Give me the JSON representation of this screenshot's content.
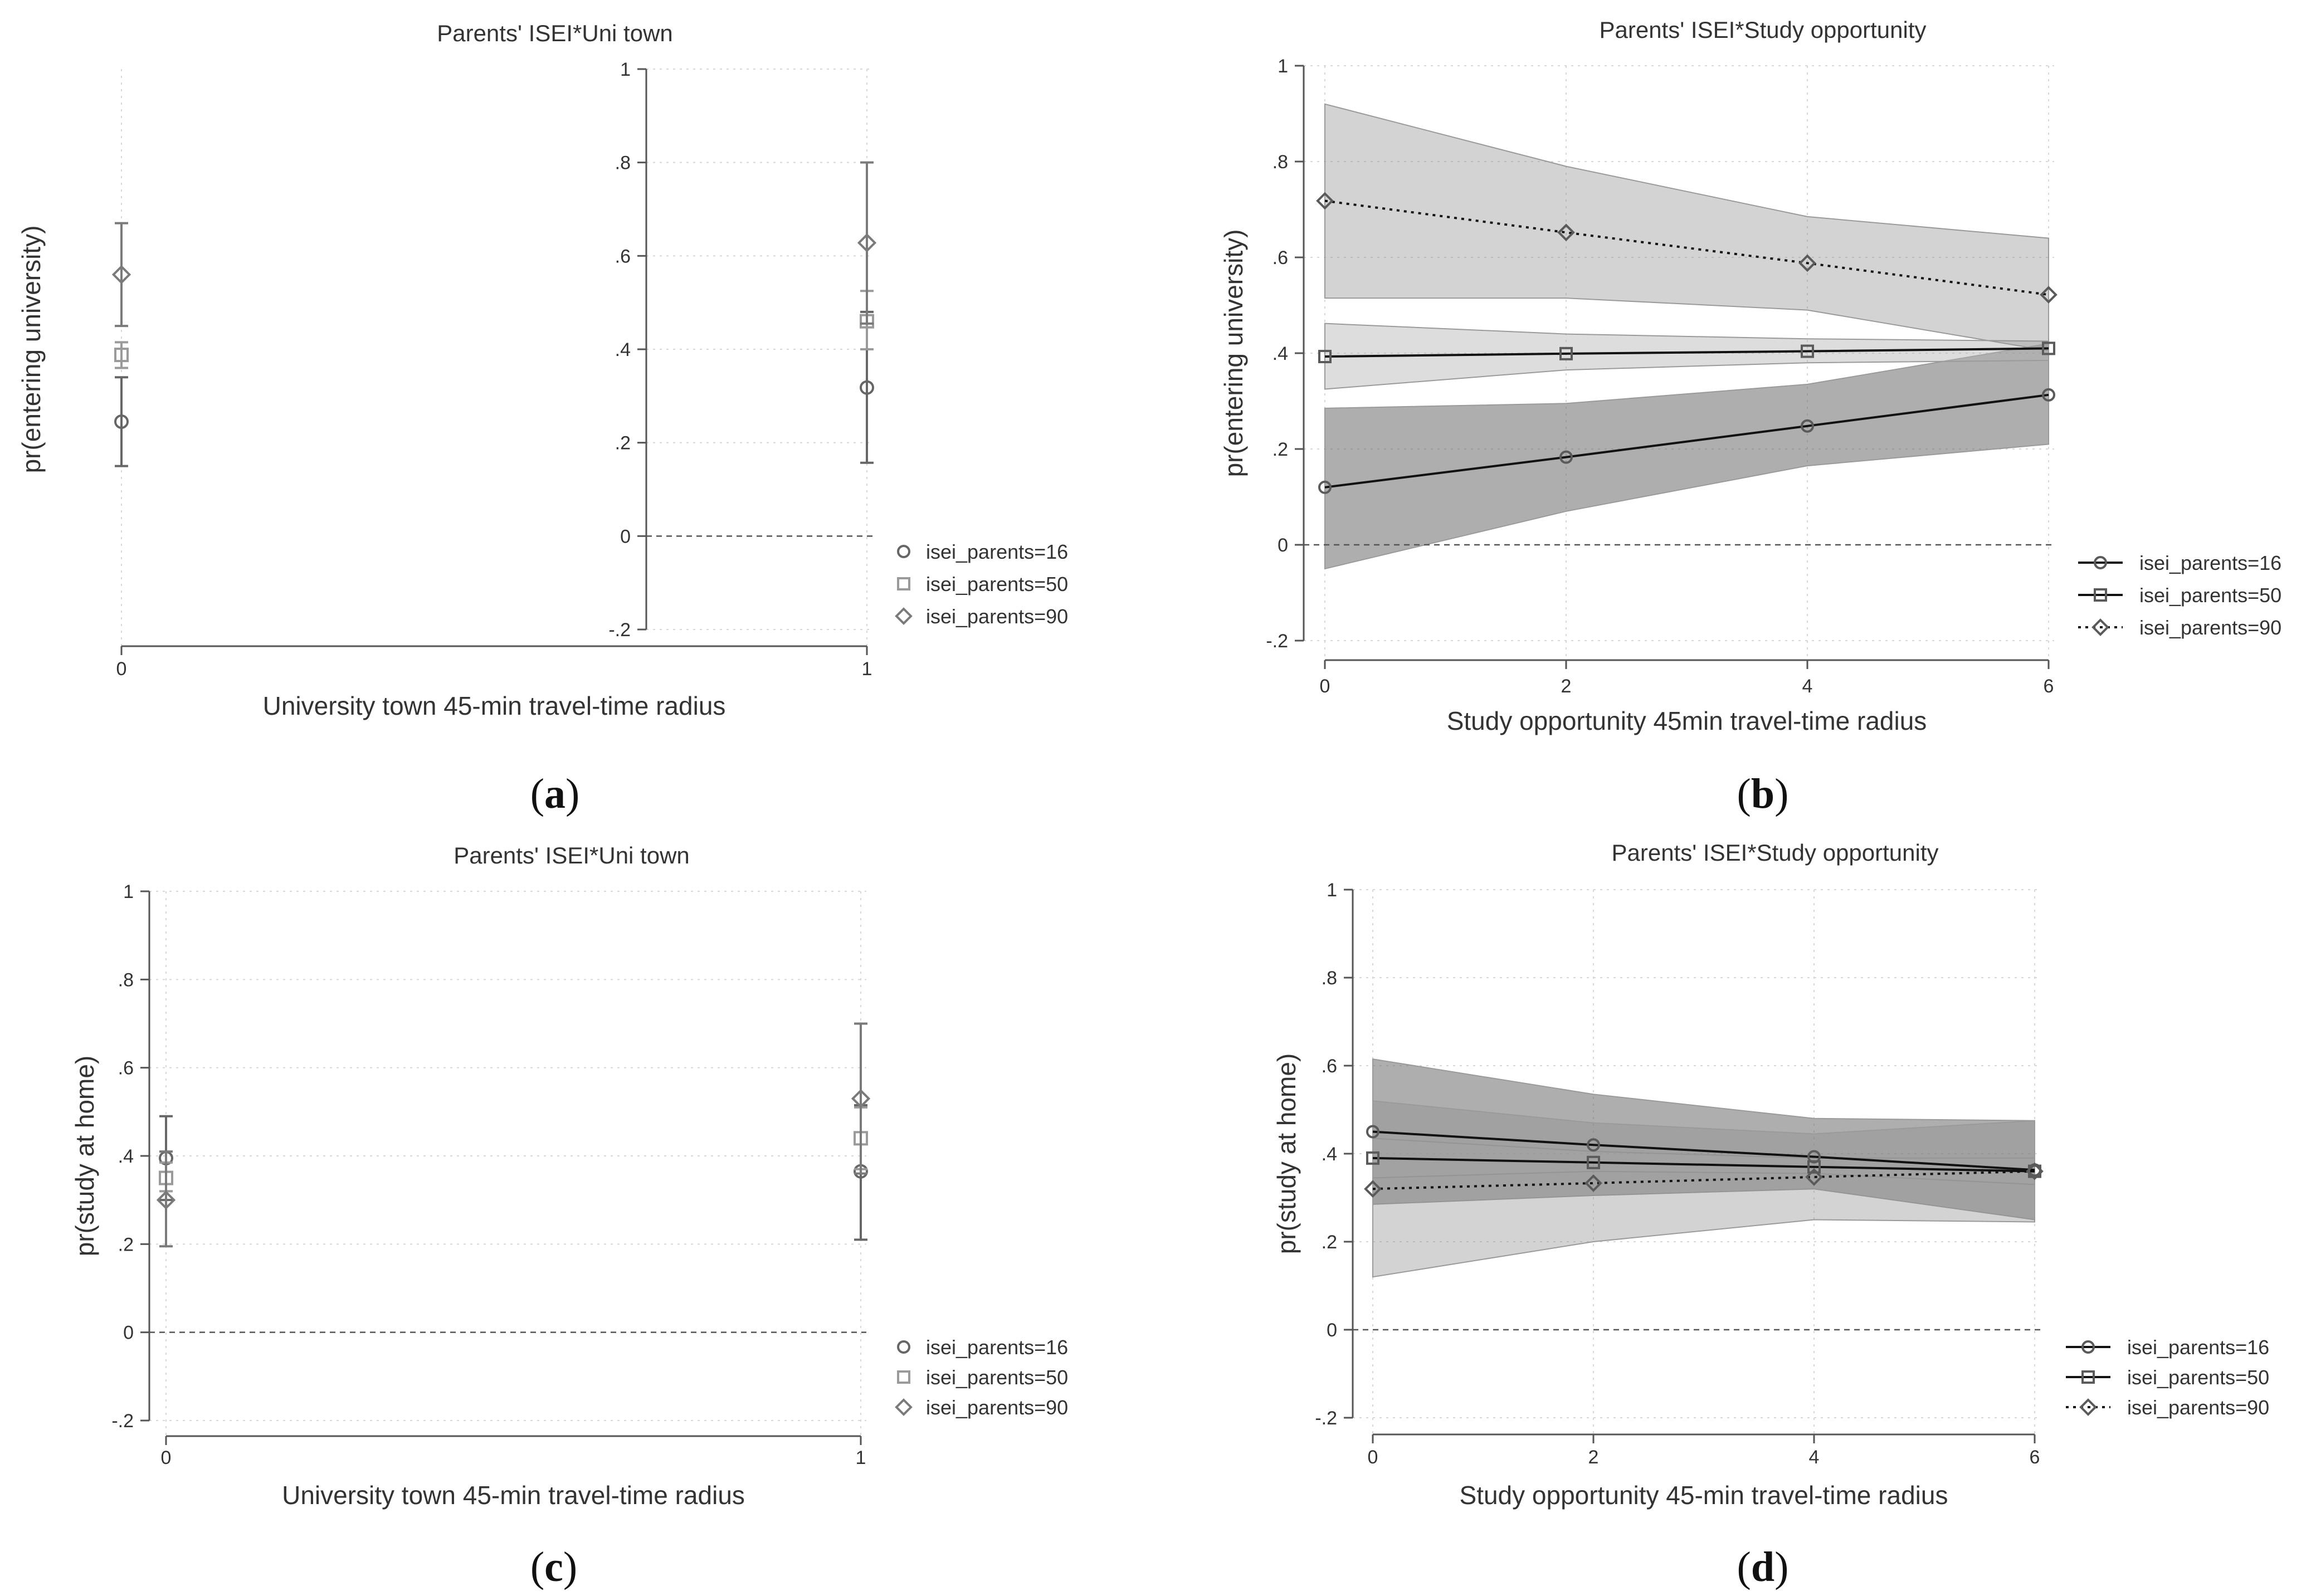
{
  "chart_data": [
    {
      "id": "a",
      "type": "scatter",
      "title": "Parents' ISEI*Uni town",
      "xlabel": "University town 45-min travel-time radius",
      "ylabel": "pr(entering university)",
      "panel_label": "a",
      "xlim": [
        0,
        1
      ],
      "ylim": [
        -0.2,
        1
      ],
      "x_ticks": [
        0,
        1
      ],
      "x_tick_labels": [
        "0",
        "1"
      ],
      "y_ticks": [
        -0.2,
        0,
        0.2,
        0.4,
        0.6,
        0.8,
        1
      ],
      "y_tick_labels": [
        "-.2",
        "0",
        ".2",
        ".4",
        ".6",
        ".8",
        "1"
      ],
      "grid": true,
      "legend_position": "right",
      "style": "points-with-ci",
      "series": [
        {
          "name": "isei_parents=16",
          "marker": "circle",
          "color": "#666666",
          "x": [
            0,
            1
          ],
          "y": [
            0.245,
            0.318
          ],
          "ci_low": [
            0.15,
            0.157
          ],
          "ci_high": [
            0.34,
            0.48
          ]
        },
        {
          "name": "isei_parents=50",
          "marker": "square",
          "color": "#9a9a9a",
          "x": [
            0,
            1
          ],
          "y": [
            0.388,
            0.46
          ],
          "ci_low": [
            0.36,
            0.4
          ],
          "ci_high": [
            0.415,
            0.525
          ]
        },
        {
          "name": "isei_parents=90",
          "marker": "diamond",
          "color": "#7a7a7a",
          "x": [
            0,
            1
          ],
          "y": [
            0.56,
            0.628
          ],
          "ci_low": [
            0.45,
            0.455
          ],
          "ci_high": [
            0.67,
            0.8
          ]
        }
      ]
    },
    {
      "id": "b",
      "type": "line",
      "title": "Parents' ISEI*Study opportunity",
      "xlabel": "Study opportunity 45min travel-time radius",
      "ylabel": "pr(entering university)",
      "panel_label": "b",
      "xlim": [
        0,
        6
      ],
      "ylim": [
        -0.2,
        1
      ],
      "x_ticks": [
        0,
        2,
        4,
        6
      ],
      "x_tick_labels": [
        "0",
        "2",
        "4",
        "6"
      ],
      "y_ticks": [
        -0.2,
        0,
        0.2,
        0.4,
        0.6,
        0.8,
        1
      ],
      "y_tick_labels": [
        "-.2",
        "0",
        ".2",
        ".4",
        ".6",
        ".8",
        "1"
      ],
      "grid": true,
      "legend_position": "right",
      "style": "lines-with-bands",
      "series": [
        {
          "name": "isei_parents=16",
          "marker": "circle",
          "dash": "solid",
          "x": [
            0,
            2,
            4,
            6
          ],
          "y": [
            0.12,
            0.183,
            0.248,
            0.313
          ],
          "band_low": [
            -0.05,
            0.07,
            0.165,
            0.21
          ],
          "band_high": [
            0.285,
            0.295,
            0.335,
            0.42
          ]
        },
        {
          "name": "isei_parents=50",
          "marker": "square",
          "dash": "solid",
          "x": [
            0,
            2,
            4,
            6
          ],
          "y": [
            0.393,
            0.399,
            0.404,
            0.41
          ],
          "band_low": [
            0.325,
            0.365,
            0.38,
            0.385
          ],
          "band_high": [
            0.462,
            0.44,
            0.43,
            0.425
          ]
        },
        {
          "name": "isei_parents=90",
          "marker": "diamond",
          "dash": "dot",
          "x": [
            0,
            2,
            4,
            6
          ],
          "y": [
            0.718,
            0.652,
            0.588,
            0.522
          ],
          "band_low": [
            0.515,
            0.515,
            0.49,
            0.405
          ],
          "band_high": [
            0.92,
            0.79,
            0.685,
            0.64
          ]
        }
      ]
    },
    {
      "id": "c",
      "type": "scatter",
      "title": "Parents' ISEI*Uni town",
      "xlabel": "University town 45-min travel-time radius",
      "ylabel": "pr(study at home)",
      "panel_label": "c",
      "xlim": [
        0,
        1
      ],
      "ylim": [
        -0.2,
        1
      ],
      "x_ticks": [
        0,
        1
      ],
      "x_tick_labels": [
        "0",
        "1"
      ],
      "y_ticks": [
        -0.2,
        0,
        0.2,
        0.4,
        0.6,
        0.8,
        1
      ],
      "y_tick_labels": [
        "-.2",
        "0",
        ".2",
        ".4",
        ".6",
        ".8",
        "1"
      ],
      "grid": true,
      "legend_position": "right",
      "style": "points-with-ci",
      "series": [
        {
          "name": "isei_parents=16",
          "marker": "circle",
          "color": "#666666",
          "x": [
            0,
            1
          ],
          "y": [
            0.395,
            0.365
          ],
          "ci_low": [
            0.3,
            0.21
          ],
          "ci_high": [
            0.49,
            0.515
          ]
        },
        {
          "name": "isei_parents=50",
          "marker": "square",
          "color": "#9a9a9a",
          "x": [
            0,
            1
          ],
          "y": [
            0.35,
            0.44
          ],
          "ci_low": [
            0.32,
            0.37
          ],
          "ci_high": [
            0.385,
            0.51
          ]
        },
        {
          "name": "isei_parents=90",
          "marker": "diamond",
          "color": "#7a7a7a",
          "x": [
            0,
            1
          ],
          "y": [
            0.3,
            0.53
          ],
          "ci_low": [
            0.195,
            0.36
          ],
          "ci_high": [
            0.41,
            0.7
          ]
        }
      ]
    },
    {
      "id": "d",
      "type": "line",
      "title": "Parents' ISEI*Study opportunity",
      "xlabel": "Study opportunity 45-min travel-time radius",
      "ylabel": "pr(study at home)",
      "panel_label": "d",
      "xlim": [
        0,
        6
      ],
      "ylim": [
        -0.2,
        1
      ],
      "x_ticks": [
        0,
        2,
        4,
        6
      ],
      "x_tick_labels": [
        "0",
        "2",
        "4",
        "6"
      ],
      "y_ticks": [
        -0.2,
        0,
        0.2,
        0.4,
        0.6,
        0.8,
        1
      ],
      "y_tick_labels": [
        "-.2",
        "0",
        ".2",
        ".4",
        ".6",
        ".8",
        "1"
      ],
      "grid": true,
      "legend_position": "right",
      "style": "lines-with-bands",
      "series": [
        {
          "name": "isei_parents=16",
          "marker": "circle",
          "dash": "solid",
          "x": [
            0,
            2,
            4,
            6
          ],
          "y": [
            0.45,
            0.42,
            0.393,
            0.363
          ],
          "band_low": [
            0.285,
            0.305,
            0.32,
            0.25
          ],
          "band_high": [
            0.615,
            0.535,
            0.48,
            0.475
          ]
        },
        {
          "name": "isei_parents=50",
          "marker": "square",
          "dash": "solid",
          "x": [
            0,
            2,
            4,
            6
          ],
          "y": [
            0.39,
            0.38,
            0.37,
            0.36
          ],
          "band_low": [
            0.345,
            0.36,
            0.355,
            0.33
          ],
          "band_high": [
            0.435,
            0.405,
            0.39,
            0.39
          ]
        },
        {
          "name": "isei_parents=90",
          "marker": "diamond",
          "dash": "dot",
          "x": [
            0,
            2,
            4,
            6
          ],
          "y": [
            0.32,
            0.333,
            0.347,
            0.36
          ],
          "band_low": [
            0.12,
            0.2,
            0.25,
            0.245
          ],
          "band_high": [
            0.52,
            0.47,
            0.445,
            0.475
          ]
        }
      ]
    }
  ]
}
